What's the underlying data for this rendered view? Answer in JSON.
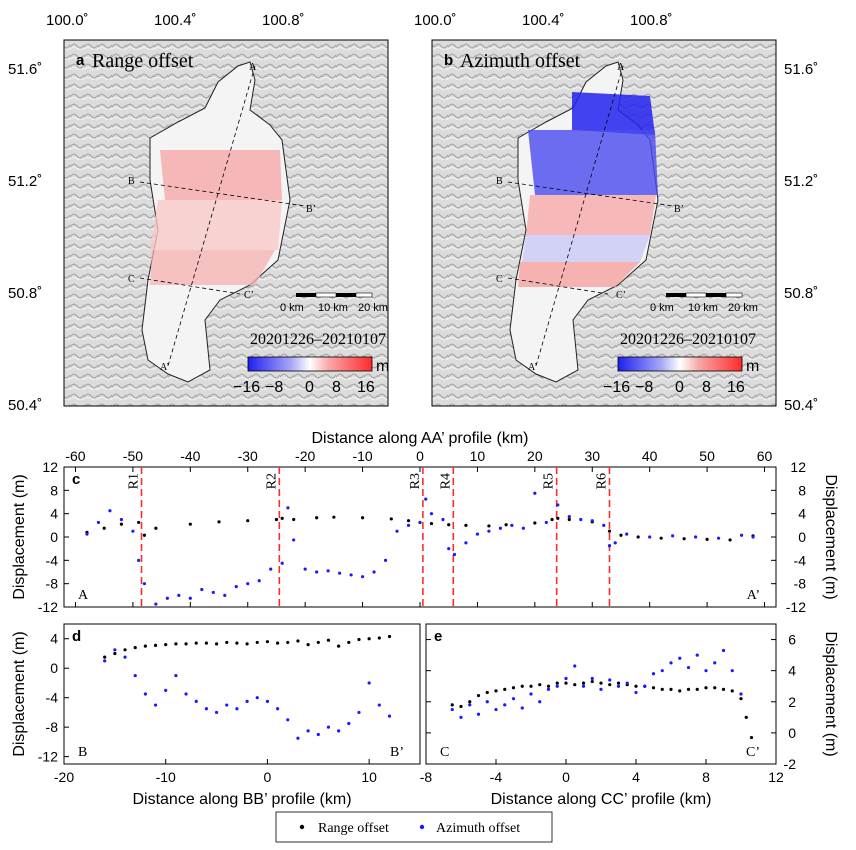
{
  "colors": {
    "range": "#000000",
    "azimuth": "#1a1aff",
    "rupture": "#ff2a2a",
    "neg": "#1f1ff0",
    "pos": "#ff2a2a",
    "land_light": "#e6e6e6",
    "land_dark": "#9a9a9a"
  },
  "maps": [
    {
      "panel_letter": "a",
      "title": "Range offset",
      "date": "20201226–20210107",
      "lon_ticks": [
        "100.0˚",
        "100.4˚",
        "100.8˚"
      ],
      "lat_ticks": [
        "51.6˚",
        "51.2˚",
        "50.8˚",
        "50.4˚"
      ],
      "colorbar": {
        "unit": "m",
        "ticks": [
          "−16",
          "−8",
          "0",
          "8",
          "16"
        ],
        "min": -16,
        "max": 16
      },
      "scalebar": {
        "labels": [
          "0 km",
          "10 km",
          "20 km"
        ]
      },
      "profile_labels": [
        "A",
        "A’",
        "B",
        "B’",
        "C",
        "C’"
      ],
      "field": "range"
    },
    {
      "panel_letter": "b",
      "title": "Azimuth offset",
      "date": "20201226–20210107",
      "lon_ticks": [
        "100.0˚",
        "100.4˚",
        "100.8˚"
      ],
      "lat_ticks": [
        "51.6˚",
        "51.2˚",
        "50.8˚",
        "50.4˚"
      ],
      "colorbar": {
        "unit": "m",
        "ticks": [
          "−16",
          "−8",
          "0",
          "8",
          "16"
        ],
        "min": -16,
        "max": 16
      },
      "scalebar": {
        "labels": [
          "0 km",
          "10 km",
          "20 km"
        ]
      },
      "profile_labels": [
        "A",
        "A’",
        "B",
        "B’",
        "C",
        "C’"
      ],
      "field": "azimuth"
    }
  ],
  "legend": {
    "items": [
      "Range offset",
      "Azimuth offset"
    ]
  },
  "chart_data": [
    {
      "type": "scatter",
      "panel_letter": "c",
      "xlabel": "Distance along AA’ profile (km)",
      "ylabel": "Displacement (m)",
      "ylabel_right": "Displacement (m)",
      "xlim": [
        -62,
        62
      ],
      "ylim": [
        -12,
        12
      ],
      "xticks": [
        -60,
        -50,
        -40,
        -30,
        -20,
        -10,
        0,
        10,
        20,
        30,
        40,
        50,
        60
      ],
      "yticks": [
        -12,
        -8,
        -4,
        0,
        4,
        8,
        12
      ],
      "end_labels": [
        "A",
        "A’"
      ],
      "ruptures": [
        {
          "label": "R1",
          "x": -48.5
        },
        {
          "label": "R2",
          "x": -24.5
        },
        {
          "label": "R3",
          "x": 0.5
        },
        {
          "label": "R4",
          "x": 5.8
        },
        {
          "label": "R5",
          "x": 23.8
        },
        {
          "label": "R6",
          "x": 33
        }
      ],
      "series": [
        {
          "name": "Range offset",
          "x": [
            -58,
            -55,
            -52,
            -49,
            -48,
            -46,
            -40,
            -35,
            -30,
            -25,
            -24,
            -22,
            -18,
            -15,
            -10,
            -5,
            -2,
            0,
            2,
            5,
            8,
            12,
            15,
            20,
            23,
            24,
            26,
            30,
            33,
            35,
            38,
            42,
            46,
            50,
            54,
            58
          ],
          "y": [
            0.8,
            1.5,
            2.2,
            2.5,
            0.3,
            1.5,
            2.2,
            2.6,
            2.8,
            3.0,
            3.2,
            3.0,
            3.3,
            3.4,
            3.3,
            3.1,
            2.8,
            2.5,
            2.3,
            2.1,
            2.0,
            1.9,
            2.1,
            2.4,
            3.0,
            3.2,
            3.0,
            2.6,
            1.0,
            0.3,
            0.0,
            -0.2,
            -0.3,
            -0.4,
            -0.5,
            0.2
          ]
        },
        {
          "name": "Azimuth offset",
          "x": [
            -58,
            -56,
            -54,
            -52,
            -50,
            -49,
            -48,
            -46,
            -44,
            -42,
            -40,
            -38,
            -36,
            -34,
            -32,
            -30,
            -28,
            -26,
            -24,
            -23,
            -22,
            -20,
            -18,
            -16,
            -14,
            -12,
            -10,
            -8,
            -6,
            -4,
            -2,
            0,
            1,
            2,
            4,
            5,
            6,
            8,
            10,
            12,
            14,
            16,
            18,
            20,
            22,
            24,
            26,
            28,
            30,
            32,
            33,
            34,
            36,
            40,
            44,
            48,
            52,
            56,
            58
          ],
          "y": [
            0.5,
            2.5,
            4.5,
            3.0,
            1.0,
            -4.0,
            -8.0,
            -11.5,
            -10.5,
            -10.0,
            -10.5,
            -9.0,
            -9.5,
            -10.0,
            -8.5,
            -8.0,
            -7.5,
            -5.5,
            -4.5,
            5.0,
            -0.5,
            -5.5,
            -6.0,
            -5.8,
            -6.2,
            -6.5,
            -6.8,
            -6.0,
            -4.0,
            1.0,
            2.0,
            2.5,
            6.5,
            4.0,
            3.0,
            -2.0,
            -3.0,
            -1.0,
            0.5,
            1.0,
            1.5,
            2.0,
            1.5,
            7.5,
            2.5,
            5.5,
            3.5,
            3.0,
            2.8,
            2.0,
            -1.5,
            -1.0,
            0.5,
            0.0,
            0.2,
            0.0,
            -0.2,
            0.3,
            0.0
          ]
        }
      ]
    },
    {
      "type": "scatter",
      "panel_letter": "d",
      "xlabel": "Distance along BB’ profile (km)",
      "ylabel": "Displacement (m)",
      "xlim": [
        -20,
        15
      ],
      "ylim": [
        -13,
        6
      ],
      "xticks": [
        -20,
        -10,
        0,
        10
      ],
      "yticks": [
        -12,
        -8,
        -4,
        0,
        4
      ],
      "end_labels": [
        "B",
        "B’"
      ],
      "series": [
        {
          "name": "Range offset",
          "x": [
            -16,
            -15,
            -14,
            -13,
            -12,
            -11,
            -10,
            -9,
            -8,
            -7,
            -6,
            -5,
            -4,
            -3,
            -2,
            -1,
            0,
            1,
            2,
            3,
            4,
            5,
            6,
            7,
            8,
            9,
            10,
            11,
            12
          ],
          "y": [
            1.5,
            2.0,
            2.5,
            2.8,
            3.0,
            3.1,
            3.2,
            3.3,
            3.3,
            3.4,
            3.4,
            3.3,
            3.5,
            3.4,
            3.3,
            3.5,
            3.6,
            3.4,
            3.5,
            3.7,
            3.2,
            3.5,
            3.8,
            3.0,
            3.5,
            3.9,
            4.0,
            4.1,
            4.3
          ]
        },
        {
          "name": "Azimuth offset",
          "x": [
            -16,
            -15,
            -14,
            -13,
            -12,
            -11,
            -10,
            -9,
            -8,
            -7,
            -6,
            -5,
            -4,
            -3,
            -2,
            -1,
            0,
            1,
            2,
            3,
            4,
            5,
            6,
            7,
            8,
            9,
            10,
            11,
            12
          ],
          "y": [
            1.0,
            2.5,
            1.5,
            -1.0,
            -3.5,
            -5.0,
            -3.0,
            -1.0,
            -3.5,
            -4.5,
            -5.5,
            -6.0,
            -5.0,
            -5.5,
            -4.5,
            -4.0,
            -4.5,
            -5.5,
            -7.0,
            -9.5,
            -8.5,
            -9.0,
            -8.0,
            -8.5,
            -7.5,
            -6.0,
            -2.0,
            -5.0,
            -6.5
          ]
        }
      ]
    },
    {
      "type": "scatter",
      "panel_letter": "e",
      "xlabel": "Distance along CC’ profile (km)",
      "ylabel": "Displacement (m)",
      "xlim": [
        -8,
        12
      ],
      "ylim": [
        -2,
        7
      ],
      "xticks": [
        -8,
        -4,
        0,
        4,
        8,
        12
      ],
      "yticks": [
        -2,
        0,
        2,
        4,
        6
      ],
      "end_labels": [
        "C",
        "C’"
      ],
      "series": [
        {
          "name": "Range offset",
          "x": [
            -6.5,
            -6,
            -5.5,
            -5,
            -4.5,
            -4,
            -3.5,
            -3,
            -2.5,
            -2,
            -1.5,
            -1,
            -0.5,
            0,
            0.5,
            1,
            1.5,
            2,
            2.5,
            3,
            3.5,
            4,
            4.5,
            5,
            5.5,
            6,
            6.5,
            7,
            7.5,
            8,
            8.5,
            9,
            9.5,
            10,
            10.3,
            10.6
          ],
          "y": [
            1.8,
            1.7,
            2.0,
            2.4,
            2.6,
            2.7,
            2.8,
            2.9,
            3.0,
            3.0,
            3.1,
            3.0,
            3.2,
            3.2,
            3.1,
            3.2,
            3.3,
            3.2,
            3.1,
            3.2,
            3.1,
            3.0,
            3.0,
            2.9,
            2.8,
            2.8,
            2.7,
            2.8,
            2.8,
            2.9,
            2.9,
            2.8,
            2.7,
            2.2,
            1.0,
            -0.3
          ]
        },
        {
          "name": "Azimuth offset",
          "x": [
            -6.5,
            -6,
            -5.5,
            -5,
            -4.5,
            -4,
            -3.5,
            -3,
            -2.5,
            -2,
            -1.5,
            -1,
            -0.5,
            0,
            0.5,
            1,
            1.5,
            2,
            2.5,
            3,
            3.5,
            4,
            4.5,
            5,
            5.5,
            6,
            6.5,
            7,
            7.5,
            8,
            8.5,
            9,
            9.5,
            10
          ],
          "y": [
            1.5,
            1.0,
            1.8,
            1.2,
            2.0,
            1.5,
            1.8,
            2.2,
            1.6,
            2.5,
            2.0,
            2.8,
            3.0,
            3.5,
            4.3,
            3.0,
            3.5,
            2.8,
            3.4,
            3.0,
            3.2,
            2.6,
            3.0,
            3.8,
            4.0,
            4.5,
            4.8,
            4.2,
            5.0,
            4.0,
            4.5,
            5.3,
            4.0,
            2.5
          ]
        }
      ]
    }
  ]
}
